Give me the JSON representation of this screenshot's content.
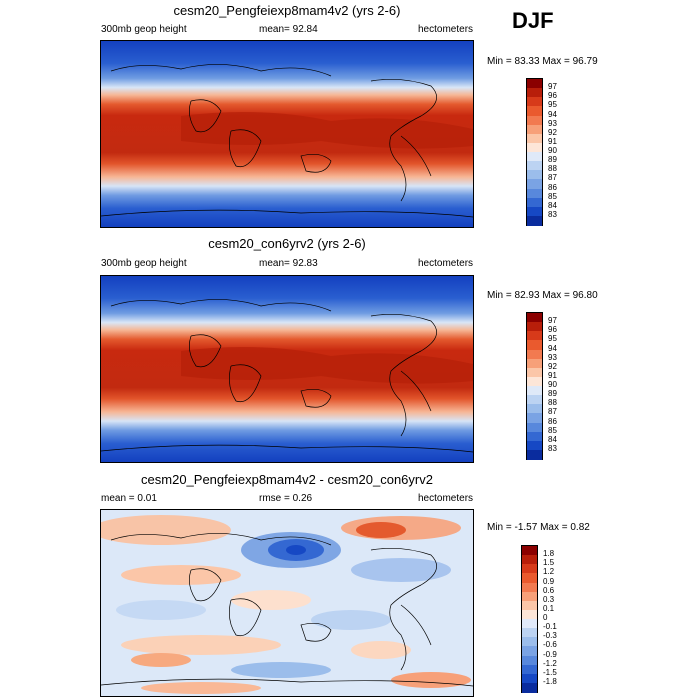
{
  "season": "DJF",
  "panels": [
    {
      "title": "cesm20_Pengfeiexp8mam4v2 (yrs 2-6)",
      "left": "300mb geop height",
      "center": "mean=  92.84",
      "right": "hectometers",
      "minmax": "Min =  83.33 Max =  96.79",
      "colorbar": {
        "labels": [
          "97",
          "96",
          "95",
          "94",
          "93",
          "92",
          "91",
          "90",
          "89",
          "88",
          "87",
          "86",
          "85",
          "84",
          "83"
        ],
        "colors": [
          "#8b0000",
          "#b81e0a",
          "#d73a1a",
          "#ea5a2e",
          "#f27a50",
          "#f7a079",
          "#fbc6a8",
          "#fde6d8",
          "#dfe9f8",
          "#bcd3f2",
          "#9bbdeb",
          "#7aa3e4",
          "#5888dc",
          "#3468d2",
          "#1648c4",
          "#0a2c9e"
        ]
      }
    },
    {
      "title": "cesm20_con6yrv2 (yrs 2-6)",
      "left": "300mb geop height",
      "center": "mean=  92.83",
      "right": "hectometers",
      "minmax": "Min =  82.93 Max =  96.80",
      "colorbar": {
        "labels": [
          "97",
          "96",
          "95",
          "94",
          "93",
          "92",
          "91",
          "90",
          "89",
          "88",
          "87",
          "86",
          "85",
          "84",
          "83"
        ],
        "colors": [
          "#8b0000",
          "#b81e0a",
          "#d73a1a",
          "#ea5a2e",
          "#f27a50",
          "#f7a079",
          "#fbc6a8",
          "#fde6d8",
          "#dfe9f8",
          "#bcd3f2",
          "#9bbdeb",
          "#7aa3e4",
          "#5888dc",
          "#3468d2",
          "#1648c4",
          "#0a2c9e"
        ]
      }
    },
    {
      "title": "cesm20_Pengfeiexp8mam4v2 - cesm20_con6yrv2",
      "left": "mean =   0.01",
      "center": "rmse =   0.26",
      "right": "hectometers",
      "minmax": "Min =  -1.57 Max =   0.82",
      "colorbar": {
        "labels": [
          "1.8",
          "1.5",
          "1.2",
          "0.9",
          "0.6",
          "0.3",
          "0.1",
          "0",
          "-0.1",
          "-0.3",
          "-0.6",
          "-0.9",
          "-1.2",
          "-1.5",
          "-1.8"
        ],
        "colors": [
          "#8b0000",
          "#b81e0a",
          "#d73a1a",
          "#ea5a2e",
          "#f27a50",
          "#f7a079",
          "#fbc6a8",
          "#fde6d8",
          "#e1eafa",
          "#bcd3f2",
          "#9bbdeb",
          "#7aa3e4",
          "#5888dc",
          "#3468d2",
          "#1648c4",
          "#0a2c9e"
        ]
      }
    }
  ]
}
